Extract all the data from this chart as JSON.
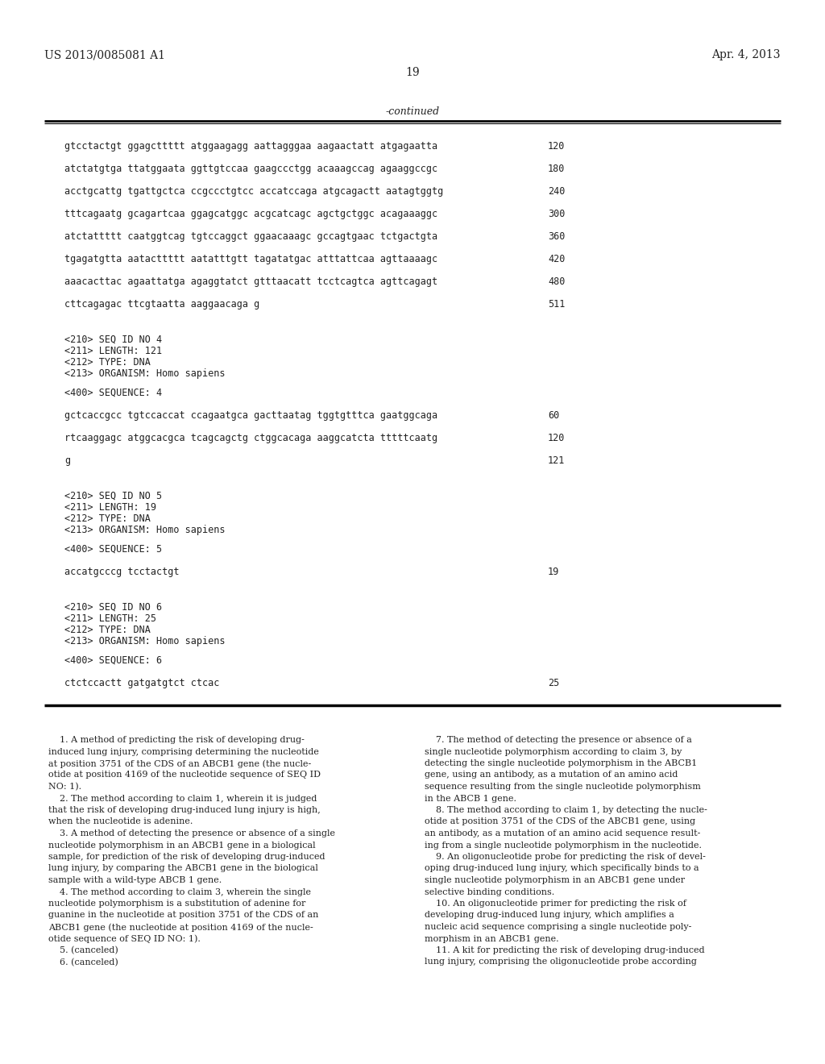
{
  "bg_color": "#ffffff",
  "header_left": "US 2013/0085081 A1",
  "header_right": "Apr. 4, 2013",
  "page_number": "19",
  "continued_label": "-continued",
  "sequence_lines": [
    {
      "text": "gtcctactgt ggagcttttt atggaagagg aattagggaa aagaactatt atgagaatta",
      "num": "120"
    },
    {
      "text": "atctatgtga ttatggaata ggttgtccaa gaagccctgg acaaagccag agaaggccgc",
      "num": "180"
    },
    {
      "text": "acctgcattg tgattgctca ccgccctgtcc accatccaga atgcagactt aatagtggtg",
      "num": "240"
    },
    {
      "text": "tttcagaatg gcagartcaa ggagcatggc acgcatcagc agctgctggc acagaaaggc",
      "num": "300"
    },
    {
      "text": "atctattttt caatggtcag tgtccaggct ggaacaaagc gccagtgaac tctgactgta",
      "num": "360"
    },
    {
      "text": "tgagatgtta aatacttttt aatatttgtt tagatatgac atttattcaa agttaaaagc",
      "num": "420"
    },
    {
      "text": "aaacacttac agaattatga agaggtatct gtttaacatt tcctcagtca agttcagagt",
      "num": "480"
    },
    {
      "text": "cttcagagac ttcgtaatta aaggaacaga g",
      "num": "511"
    }
  ],
  "seq4_header": [
    "<210> SEQ ID NO 4",
    "<211> LENGTH: 121",
    "<212> TYPE: DNA",
    "<213> ORGANISM: Homo sapiens"
  ],
  "seq4_label": "<400> SEQUENCE: 4",
  "seq4_lines": [
    {
      "text": "gctcaccgcc tgtccaccat ccagaatgca gacttaatag tggtgtttca gaatggcaga",
      "num": "60"
    },
    {
      "text": "rtcaaggagc atggcacgca tcagcagctg ctggcacaga aaggcatcta tttttcaatg",
      "num": "120"
    },
    {
      "text": "g",
      "num": "121"
    }
  ],
  "seq5_header": [
    "<210> SEQ ID NO 5",
    "<211> LENGTH: 19",
    "<212> TYPE: DNA",
    "<213> ORGANISM: Homo sapiens"
  ],
  "seq5_label": "<400> SEQUENCE: 5",
  "seq5_lines": [
    {
      "text": "accatgcccg tcctactgt",
      "num": "19"
    }
  ],
  "seq6_header": [
    "<210> SEQ ID NO 6",
    "<211> LENGTH: 25",
    "<212> TYPE: DNA",
    "<213> ORGANISM: Homo sapiens"
  ],
  "seq6_label": "<400> SEQUENCE: 6",
  "seq6_lines": [
    {
      "text": "ctctccactt gatgatgtct ctcac",
      "num": "25"
    }
  ],
  "claims_left": [
    "    ±1. A method of predicting the risk of developing drug-",
    "induced lung injury, comprising determining the nucleotide",
    "at position 3751 of the CDS of an ABCB1 gene (the nucle-",
    "otide at position 4169 of the nucleotide sequence of SEQ ID",
    "NO: 1).",
    "    ±2. The method according to claim ±1, wherein it is judged",
    "that the risk of developing drug-induced lung injury is high,",
    "when the nucleotide is adenine.",
    "    ±3. A method of detecting the presence or absence of a single",
    "nucleotide polymorphism in an ABCB1 gene in a biological",
    "sample, for prediction of the risk of developing drug-induced",
    "lung injury, by comparing the ABCB1 gene in the biological",
    "sample with a wild-type ABCB 1 gene.",
    "    ±4. The method according to claim ±3, wherein the single",
    "nucleotide polymorphism is a substitution of adenine for",
    "guanine in the nucleotide at position 3751 of the CDS of an",
    "ABCB1 gene (the nucleotide at position 4169 of the nucle-",
    "otide sequence of SEQ ID NO: 1).",
    "    ±5. (canceled)",
    "    ±6. (canceled)"
  ],
  "claims_right": [
    "    ±7. The method of detecting the presence or absence of a",
    "single nucleotide polymorphism according to claim ±3, by",
    "detecting the single nucleotide polymorphism in the ABCB1",
    "gene, using an antibody, as a mutation of an amino acid",
    "sequence resulting from the single nucleotide polymorphism",
    "in the ABCB 1 gene.",
    "    ±8. The method according to claim 1, by detecting the nucle-",
    "otide at position 3751 of the CDS of the ABCB1 gene, using",
    "an antibody, as a mutation of an amino acid sequence result-",
    "ing from a single nucleotide polymorphism in the nucleotide.",
    "    ±9. An oligonucleotide probe for predicting the risk of devel-",
    "oping drug-induced lung injury, which specifically binds to a",
    "single nucleotide polymorphism in an ABCB1 gene under",
    "selective binding conditions.",
    "    ±10. An oligonucleotide primer for predicting the risk of",
    "developing drug-induced lung injury, which amplifies a",
    "nucleic acid sequence comprising a single nucleotide poly-",
    "morphism in an ABCB1 gene.",
    "    ±11. A kit for predicting the risk of developing drug-induced",
    "lung injury, comprising the oligonucleotide probe according"
  ]
}
